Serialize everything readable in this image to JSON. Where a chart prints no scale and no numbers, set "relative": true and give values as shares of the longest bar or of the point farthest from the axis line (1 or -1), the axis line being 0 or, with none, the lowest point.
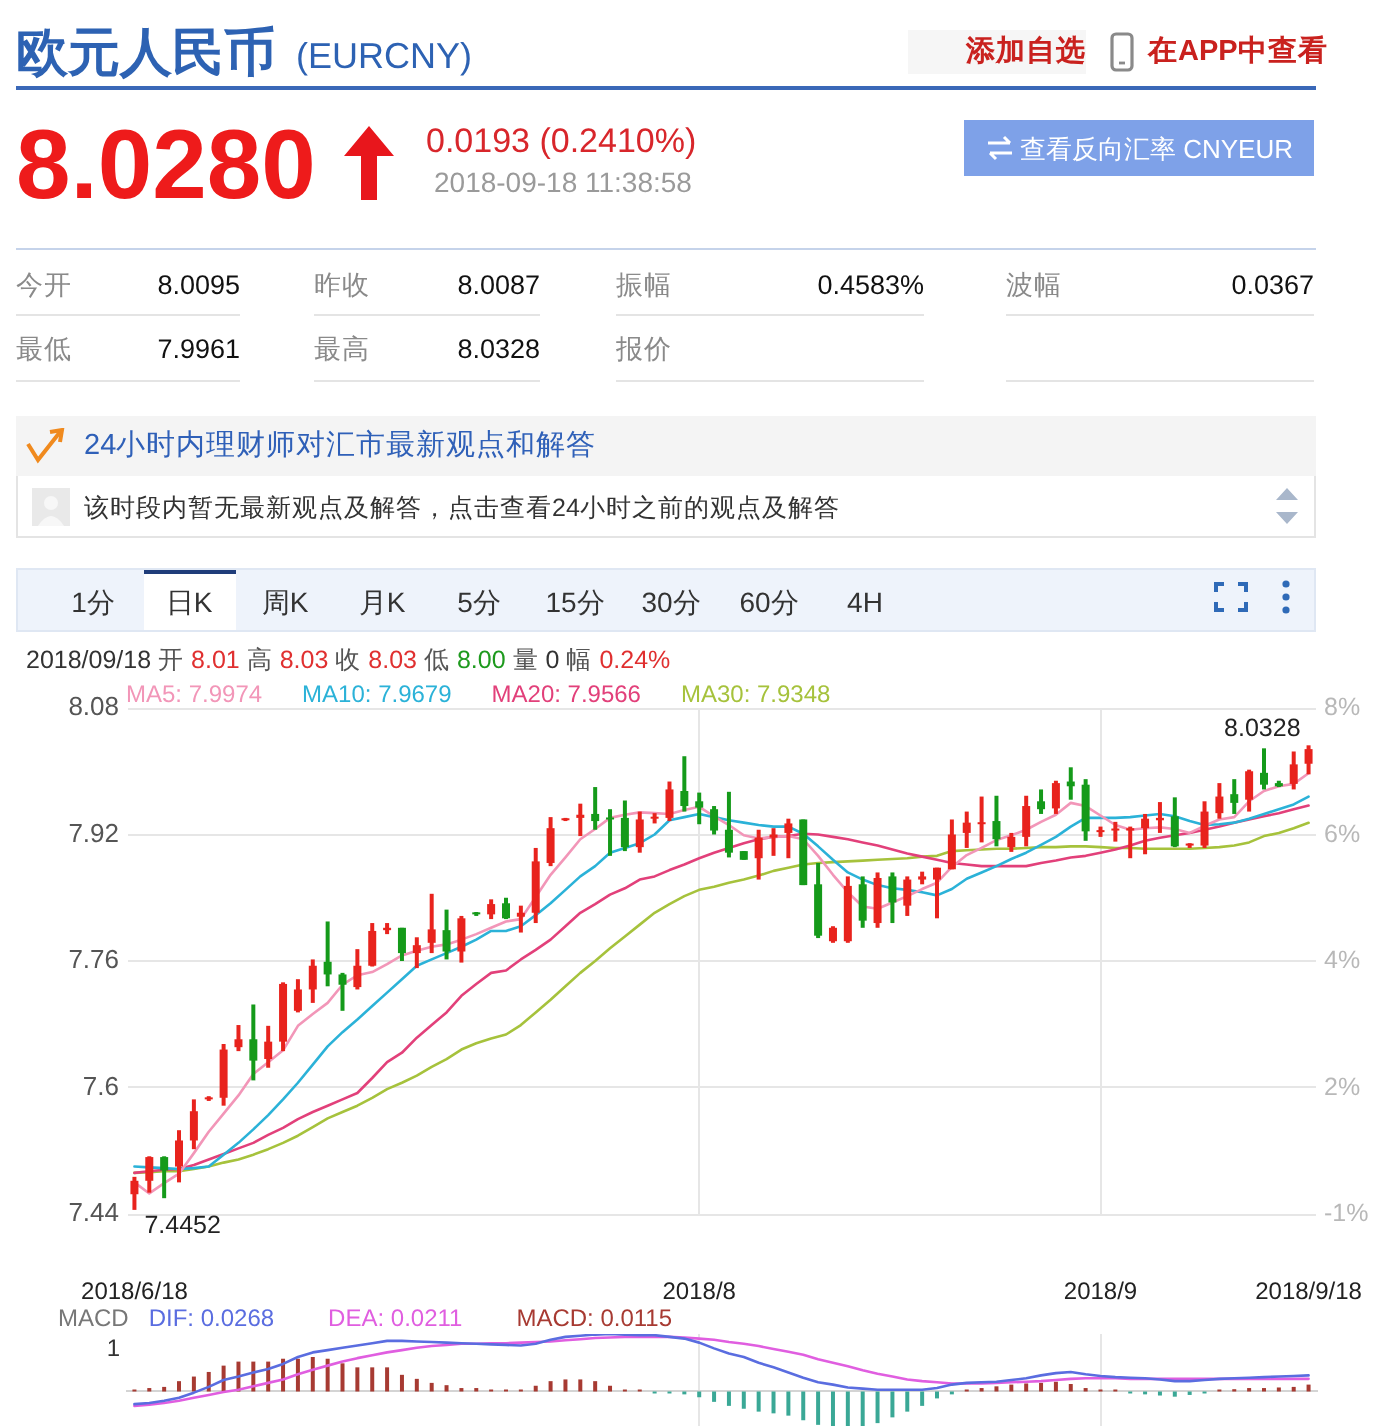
{
  "chart_data": [
    {
      "type": "other",
      "title": "欧元人民币",
      "subtitle": "(EURCNY)",
      "annotations": [
        "添加自选",
        "在APP中查看",
        "8.0280",
        "0.0193 (0.2410%)",
        "2018-09-18 11:38:58",
        "查看反向汇率 CNYEUR",
        "今开",
        "8.0095",
        "昨收",
        "8.0087",
        "振幅",
        "0.4583%",
        "波幅",
        "0.0367",
        "最低",
        "7.9961",
        "最高",
        "8.0328",
        "报价",
        "24小时内理财师对汇市最新观点和解答",
        "该时段内暂无最新观点及解答，点击查看24小时之前的观点及解答",
        "1分",
        "日K",
        "周K",
        "月K",
        "5分",
        "15分",
        "30分",
        "60分",
        "4H"
      ]
    },
    {
      "type": "candlestick",
      "subtitle": "2018/09/18 开 8.01 高 8.03 收 8.03 低 8.00 量 0 幅 0.24%",
      "categories": [
        "2018/6/18",
        null,
        null,
        null,
        null,
        null,
        null,
        null,
        null,
        null,
        null,
        null,
        null,
        null,
        null,
        null,
        null,
        null,
        null,
        null,
        null,
        null,
        null,
        null,
        null,
        null,
        null,
        null,
        null,
        null,
        null,
        null,
        null,
        null,
        null,
        null,
        null,
        null,
        "2018/8",
        null,
        null,
        null,
        null,
        null,
        null,
        null,
        null,
        null,
        null,
        null,
        null,
        null,
        null,
        null,
        null,
        null,
        null,
        null,
        null,
        null,
        null,
        null,
        null,
        null,
        null,
        "2018/9",
        null,
        null,
        null,
        null,
        null,
        null,
        null,
        null,
        null,
        null,
        null,
        null,
        null,
        "2018/9/18"
      ],
      "ohlc": [
        [
          7.465,
          7.487,
          7.4452,
          7.482
        ],
        [
          7.482,
          7.513,
          7.467,
          7.512
        ],
        [
          7.512,
          7.513,
          7.46,
          7.495
        ],
        [
          7.5,
          7.546,
          7.48,
          7.533
        ],
        [
          7.533,
          7.585,
          7.522,
          7.57
        ],
        [
          7.585,
          7.589,
          7.583,
          7.587
        ],
        [
          7.587,
          7.655,
          7.577,
          7.648
        ],
        [
          7.651,
          7.679,
          7.646,
          7.661
        ],
        [
          7.661,
          7.705,
          7.609,
          7.634
        ],
        [
          7.636,
          7.678,
          7.625,
          7.658
        ],
        [
          7.658,
          7.733,
          7.646,
          7.731
        ],
        [
          7.697,
          7.737,
          7.695,
          7.724
        ],
        [
          7.724,
          7.762,
          7.707,
          7.754
        ],
        [
          7.759,
          7.81,
          7.728,
          7.743
        ],
        [
          7.743,
          7.745,
          7.697,
          7.73
        ],
        [
          7.727,
          7.775,
          7.724,
          7.754
        ],
        [
          7.754,
          7.808,
          7.753,
          7.798
        ],
        [
          7.799,
          7.808,
          7.794,
          7.802
        ],
        [
          7.802,
          7.802,
          7.76,
          7.77
        ],
        [
          7.77,
          7.79,
          7.751,
          7.78
        ],
        [
          7.783,
          7.845,
          7.77,
          7.8
        ],
        [
          7.799,
          7.825,
          7.762,
          7.772
        ],
        [
          7.772,
          7.817,
          7.758,
          7.814
        ],
        [
          7.82,
          7.822,
          7.817,
          7.819
        ],
        [
          7.819,
          7.838,
          7.813,
          7.832
        ],
        [
          7.833,
          7.84,
          7.813,
          7.814
        ],
        [
          7.816,
          7.83,
          7.796,
          7.821
        ],
        [
          7.821,
          7.903,
          7.808,
          7.886
        ],
        [
          7.884,
          7.942,
          7.88,
          7.928
        ],
        [
          7.938,
          7.941,
          7.937,
          7.939
        ],
        [
          7.941,
          7.959,
          7.918,
          7.945
        ],
        [
          7.946,
          7.98,
          7.926,
          7.937
        ],
        [
          7.94,
          7.952,
          7.893,
          7.939
        ],
        [
          7.941,
          7.963,
          7.899,
          7.904
        ],
        [
          7.904,
          7.949,
          7.897,
          7.939
        ],
        [
          7.94,
          7.947,
          7.934,
          7.942
        ],
        [
          7.941,
          7.987,
          7.937,
          7.977
        ],
        [
          7.975,
          8.019,
          7.949,
          7.956
        ],
        [
          7.962,
          7.973,
          7.933,
          7.954
        ],
        [
          7.952,
          7.956,
          7.92,
          7.925
        ],
        [
          7.926,
          7.974,
          7.891,
          7.897
        ],
        [
          7.899,
          7.899,
          7.888,
          7.888
        ],
        [
          7.89,
          7.926,
          7.863,
          7.916
        ],
        [
          7.916,
          7.928,
          7.893,
          7.92
        ],
        [
          7.922,
          7.94,
          7.89,
          7.934
        ],
        [
          7.939,
          7.939,
          7.856,
          7.856
        ],
        [
          7.857,
          7.884,
          7.789,
          7.792
        ],
        [
          7.785,
          7.804,
          7.783,
          7.802
        ],
        [
          7.785,
          7.867,
          7.783,
          7.855
        ],
        [
          7.857,
          7.867,
          7.802,
          7.811
        ],
        [
          7.808,
          7.872,
          7.802,
          7.865
        ],
        [
          7.867,
          7.872,
          7.808,
          7.834
        ],
        [
          7.83,
          7.867,
          7.817,
          7.863
        ],
        [
          7.863,
          7.873,
          7.857,
          7.867
        ],
        [
          7.863,
          7.878,
          7.814,
          7.878
        ],
        [
          7.876,
          7.939,
          7.876,
          7.92
        ],
        [
          7.922,
          7.949,
          7.903,
          7.935
        ],
        [
          7.933,
          7.968,
          7.91,
          7.935
        ],
        [
          7.937,
          7.969,
          7.905,
          7.914
        ],
        [
          7.904,
          7.922,
          7.898,
          7.917
        ],
        [
          7.917,
          7.969,
          7.905,
          7.956
        ],
        [
          7.962,
          7.977,
          7.946,
          7.952
        ],
        [
          7.953,
          7.988,
          7.946,
          7.985
        ],
        [
          7.987,
          8.005,
          7.964,
          7.981
        ],
        [
          7.983,
          7.99,
          7.912,
          7.924
        ],
        [
          7.923,
          7.93,
          7.917,
          7.925
        ],
        [
          7.925,
          7.936,
          7.911,
          7.927
        ],
        [
          7.925,
          7.93,
          7.89,
          7.928
        ],
        [
          7.928,
          7.946,
          7.895,
          7.94
        ],
        [
          7.938,
          7.961,
          7.922,
          7.941
        ],
        [
          7.943,
          7.967,
          7.904,
          7.905
        ],
        [
          7.906,
          7.909,
          7.903,
          7.908
        ],
        [
          7.906,
          7.962,
          7.903,
          7.949
        ],
        [
          7.947,
          7.985,
          7.94,
          7.968
        ],
        [
          7.971,
          7.99,
          7.946,
          7.96
        ],
        [
          7.964,
          8.002,
          7.949,
          8.0
        ],
        [
          7.998,
          8.029,
          7.977,
          7.983
        ],
        [
          7.985,
          7.988,
          7.98,
          7.981
        ],
        [
          7.984,
          8.025,
          7.977,
          8.0087
        ],
        [
          8.0095,
          8.0328,
          7.9961,
          8.028
        ]
      ],
      "colors": [
        "#e8231d",
        "#e8231d",
        "#159a1a",
        "#e8231d",
        "#e8231d",
        "#e8231d",
        "#e8231d",
        "#e8231d",
        "#159a1a",
        "#e8231d",
        "#e8231d",
        "#e8231d",
        "#e8231d",
        "#159a1a",
        "#159a1a",
        "#e8231d",
        "#e8231d",
        "#e8231d",
        "#159a1a",
        "#e8231d",
        "#e8231d",
        "#159a1a",
        "#e8231d",
        "#159a1a",
        "#e8231d",
        "#159a1a",
        "#e8231d",
        "#e8231d",
        "#e8231d",
        "#e8231d",
        "#e8231d",
        "#159a1a",
        "#159a1a",
        "#159a1a",
        "#e8231d",
        "#e8231d",
        "#e8231d",
        "#159a1a",
        "#159a1a",
        "#159a1a",
        "#159a1a",
        "#159a1a",
        "#e8231d",
        "#e8231d",
        "#e8231d",
        "#159a1a",
        "#159a1a",
        "#e8231d",
        "#e8231d",
        "#159a1a",
        "#e8231d",
        "#159a1a",
        "#e8231d",
        "#e8231d",
        "#e8231d",
        "#e8231d",
        "#e8231d",
        "#e8231d",
        "#159a1a",
        "#e8231d",
        "#e8231d",
        "#159a1a",
        "#e8231d",
        "#159a1a",
        "#159a1a",
        "#e8231d",
        "#e8231d",
        "#e8231d",
        "#e8231d",
        "#e8231d",
        "#159a1a",
        "#e8231d",
        "#e8231d",
        "#e8231d",
        "#159a1a",
        "#e8231d",
        "#159a1a",
        "#159a1a",
        "#e8231d",
        "#e8231d"
      ],
      "series": [
        {
          "type": "line",
          "name": "MA5: 7.9974",
          "color": "#f296b8",
          "values": [
            7.48,
            7.466,
            7.479,
            7.491,
            7.517,
            7.544,
            7.567,
            7.59,
            7.617,
            7.632,
            7.647,
            7.678,
            7.693,
            7.707,
            7.73,
            7.742,
            7.746,
            7.756,
            7.767,
            7.773,
            7.778,
            7.781,
            7.787,
            7.794,
            7.802,
            7.81,
            7.813,
            7.841,
            7.869,
            7.891,
            7.914,
            7.927,
            7.941,
            7.945,
            7.948,
            7.947,
            7.946,
            7.951,
            7.955,
            7.943,
            7.932,
            7.919,
            7.915,
            7.917,
            7.918,
            7.914,
            7.893,
            7.869,
            7.847,
            7.829,
            7.826,
            7.834,
            7.842,
            7.851,
            7.859,
            7.879,
            7.894,
            7.903,
            7.913,
            7.919,
            7.926,
            7.936,
            7.945,
            7.96,
            7.956,
            7.944,
            7.932,
            7.926,
            7.928,
            7.929,
            7.927,
            7.922,
            7.931,
            7.939,
            7.942,
            7.962,
            7.975,
            7.981,
            7.984,
            7.9974
          ]
        },
        {
          "type": "line",
          "name": "MA10: 7.9679",
          "color": "#2bb2d8",
          "values": [
            7.5,
            7.499,
            7.498,
            7.497,
            7.498,
            7.5,
            7.515,
            7.53,
            7.547,
            7.565,
            7.585,
            7.606,
            7.629,
            7.652,
            7.67,
            7.686,
            7.703,
            7.72,
            7.737,
            7.754,
            7.762,
            7.77,
            7.778,
            7.787,
            7.798,
            7.798,
            7.804,
            7.818,
            7.833,
            7.85,
            7.867,
            7.88,
            7.897,
            7.903,
            7.909,
            7.92,
            7.938,
            7.942,
            7.946,
            7.942,
            7.938,
            7.935,
            7.932,
            7.93,
            7.93,
            7.921,
            7.905,
            7.888,
            7.872,
            7.863,
            7.856,
            7.852,
            7.85,
            7.847,
            7.843,
            7.851,
            7.864,
            7.872,
            7.88,
            7.889,
            7.897,
            7.907,
            7.917,
            7.93,
            7.941,
            7.941,
            7.941,
            7.942,
            7.944,
            7.946,
            7.943,
            7.937,
            7.932,
            7.933,
            7.935,
            7.94,
            7.946,
            7.952,
            7.958,
            7.9679
          ]
        },
        {
          "type": "line",
          "name": "MA20: 7.9566",
          "color": "#e2407a",
          "values": [
            7.492,
            7.494,
            7.496,
            7.497,
            7.502,
            7.509,
            7.516,
            7.523,
            7.53,
            7.54,
            7.549,
            7.56,
            7.569,
            7.577,
            7.585,
            7.593,
            7.612,
            7.632,
            7.644,
            7.663,
            7.679,
            7.695,
            7.716,
            7.731,
            7.745,
            7.748,
            7.762,
            7.774,
            7.787,
            7.804,
            7.821,
            7.832,
            7.844,
            7.852,
            7.863,
            7.867,
            7.875,
            7.882,
            7.89,
            7.897,
            7.903,
            7.909,
            7.914,
            7.917,
            7.918,
            7.921,
            7.92,
            7.917,
            7.914,
            7.91,
            7.906,
            7.901,
            7.896,
            7.892,
            7.888,
            7.884,
            7.882,
            7.88,
            7.88,
            7.88,
            7.88,
            7.884,
            7.887,
            7.891,
            7.893,
            7.897,
            7.901,
            7.906,
            7.912,
            7.916,
            7.919,
            7.922,
            7.926,
            7.93,
            7.935,
            7.939,
            7.943,
            7.947,
            7.952,
            7.9566
          ]
        },
        {
          "type": "line",
          "name": "MA30: 7.9348",
          "color": "#a6c23c",
          "values": [
            7.492,
            7.493,
            7.494,
            7.494,
            7.497,
            7.5,
            7.505,
            7.509,
            7.515,
            7.522,
            7.53,
            7.539,
            7.55,
            7.561,
            7.569,
            7.577,
            7.587,
            7.598,
            7.606,
            7.615,
            7.626,
            7.636,
            7.648,
            7.656,
            7.662,
            7.667,
            7.679,
            7.695,
            7.711,
            7.728,
            7.745,
            7.76,
            7.776,
            7.791,
            7.806,
            7.821,
            7.832,
            7.842,
            7.85,
            7.854,
            7.859,
            7.863,
            7.868,
            7.874,
            7.878,
            7.882,
            7.884,
            7.885,
            7.886,
            7.887,
            7.888,
            7.889,
            7.89,
            7.892,
            7.893,
            7.899,
            7.9,
            7.901,
            7.902,
            7.902,
            7.903,
            7.904,
            7.904,
            7.905,
            7.905,
            7.904,
            7.903,
            7.903,
            7.902,
            7.902,
            7.902,
            7.902,
            7.903,
            7.904,
            7.906,
            7.91,
            7.918,
            7.922,
            7.928,
            7.9348
          ]
        }
      ],
      "ylim": [
        7.44,
        8.08
      ],
      "yticks": [
        7.44,
        7.6,
        7.76,
        7.92,
        8.08
      ],
      "y2lim": [
        -0.55,
        8
      ],
      "y2ticks": [
        {
          "value": -0.55,
          "label": "-1%"
        },
        {
          "value": 1.58,
          "label": "2%"
        },
        {
          "value": 3.72,
          "label": "4%"
        },
        {
          "value": 5.86,
          "label": "6%"
        },
        {
          "value": 8,
          "label": "8%"
        }
      ],
      "grid": true,
      "legend": "top left",
      "annotations": [
        {
          "text": "8.0328",
          "x": "2018/9/18",
          "y": 8.0328
        },
        {
          "text": "7.4452",
          "x": "2018/6/18",
          "y": 7.4452
        }
      ]
    },
    {
      "type": "bar",
      "relative": true,
      "tick_labels": false,
      "grid": "x",
      "legend": "top left",
      "legend_title": "MACD",
      "annotations": [
        "1"
      ],
      "categories": [
        "2018/6/18",
        null,
        null,
        null,
        null,
        null,
        null,
        null,
        null,
        null,
        null,
        null,
        null,
        null,
        null,
        null,
        null,
        null,
        null,
        null,
        null,
        null,
        null,
        null,
        null,
        null,
        null,
        null,
        null,
        null,
        null,
        null,
        null,
        null,
        null,
        null,
        null,
        null,
        "2018/8",
        null,
        null,
        null,
        null,
        null,
        null,
        null,
        null,
        null,
        null,
        null,
        null,
        null,
        null,
        null,
        null,
        null,
        null,
        null,
        null,
        null,
        null,
        null,
        null,
        null,
        null,
        "2018/9",
        null,
        null,
        null,
        null,
        null,
        null,
        null,
        null,
        null,
        null,
        null,
        null,
        null,
        "2018/9/18"
      ],
      "series": [
        {
          "type": "line",
          "name": "DIF: 0.0268",
          "color": "#5a6de0",
          "values": [
            -0.22,
            -0.2,
            -0.16,
            -0.11,
            -0.02,
            0.08,
            0.2,
            0.26,
            0.33,
            0.39,
            0.48,
            0.6,
            0.68,
            0.72,
            0.76,
            0.8,
            0.84,
            0.88,
            0.88,
            0.87,
            0.86,
            0.85,
            0.84,
            0.83,
            0.82,
            0.81,
            0.8,
            0.83,
            0.9,
            0.95,
            0.97,
            0.99,
            1,
            0.99,
            0.98,
            0.98,
            0.95,
            0.92,
            0.85,
            0.75,
            0.66,
            0.6,
            0.5,
            0.42,
            0.33,
            0.24,
            0.16,
            0.12,
            0.07,
            0.05,
            0.03,
            0.03,
            0.03,
            0.03,
            0.06,
            0.12,
            0.15,
            0.16,
            0.17,
            0.2,
            0.23,
            0.28,
            0.32,
            0.34,
            0.3,
            0.27,
            0.25,
            0.24,
            0.23,
            0.21,
            0.18,
            0.18,
            0.2,
            0.22,
            0.23,
            0.24,
            0.25,
            0.26,
            0.27,
            0.28
          ]
        },
        {
          "type": "line",
          "name": "DEA: 0.0211",
          "color": "#e05ee0",
          "values": [
            -0.25,
            -0.23,
            -0.2,
            -0.16,
            -0.11,
            -0.06,
            -0.01,
            0.03,
            0.09,
            0.15,
            0.21,
            0.3,
            0.38,
            0.45,
            0.52,
            0.58,
            0.63,
            0.68,
            0.72,
            0.76,
            0.79,
            0.81,
            0.83,
            0.83,
            0.84,
            0.84,
            0.85,
            0.86,
            0.87,
            0.89,
            0.91,
            0.93,
            0.94,
            0.95,
            0.95,
            0.95,
            0.95,
            0.94,
            0.92,
            0.9,
            0.86,
            0.83,
            0.79,
            0.74,
            0.69,
            0.64,
            0.56,
            0.5,
            0.44,
            0.37,
            0.31,
            0.26,
            0.21,
            0.18,
            0.16,
            0.14,
            0.14,
            0.14,
            0.15,
            0.16,
            0.17,
            0.18,
            0.2,
            0.22,
            0.23,
            0.23,
            0.23,
            0.22,
            0.22,
            0.22,
            0.22,
            0.22,
            0.22,
            0.22,
            0.22,
            0.22,
            0.22,
            0.22,
            0.22,
            0.22
          ]
        },
        {
          "type": "bar",
          "name": "MACD: 0.0115",
          "color": "#a73a32",
          "values": [
            0.03,
            0.06,
            0.08,
            0.18,
            0.26,
            0.34,
            0.45,
            0.52,
            0.52,
            0.52,
            0.57,
            0.57,
            0.6,
            0.57,
            0.49,
            0.42,
            0.42,
            0.42,
            0.29,
            0.22,
            0.15,
            0.11,
            0.06,
            0.06,
            0.03,
            0.02,
            0.01,
            0.1,
            0.18,
            0.21,
            0.21,
            0.18,
            0.1,
            0.03,
            0.01,
            -0.01,
            -0.02,
            -0.05,
            -0.1,
            -0.18,
            -0.25,
            -0.3,
            -0.35,
            -0.38,
            -0.42,
            -0.5,
            -0.58,
            -0.6,
            -0.6,
            -0.6,
            -0.55,
            -0.45,
            -0.35,
            -0.25,
            -0.12,
            -0.05,
            0.03,
            0.06,
            0.09,
            0.12,
            0.14,
            0.15,
            0.17,
            0.13,
            0.06,
            0.02,
            0.01,
            -0.02,
            -0.05,
            -0.07,
            -0.09,
            -0.06,
            -0.03,
            0.02,
            0.04,
            0.06,
            0.06,
            0.07,
            0.08,
            0.12
          ],
          "colors": [
            "#a73a32",
            "#a73a32",
            "#a73a32",
            "#a73a32",
            "#a73a32",
            "#a73a32",
            "#a73a32",
            "#a73a32",
            "#a73a32",
            "#a73a32",
            "#a73a32",
            "#a73a32",
            "#a73a32",
            "#a73a32",
            "#a73a32",
            "#a73a32",
            "#a73a32",
            "#a73a32",
            "#a73a32",
            "#a73a32",
            "#a73a32",
            "#a73a32",
            "#a73a32",
            "#a73a32",
            "#a73a32",
            "#a73a32",
            "#a73a32",
            "#a73a32",
            "#a73a32",
            "#a73a32",
            "#a73a32",
            "#a73a32",
            "#a73a32",
            "#a73a32",
            "#a73a32",
            "#3aa896",
            "#3aa896",
            "#3aa896",
            "#3aa896",
            "#3aa896",
            "#3aa896",
            "#3aa896",
            "#3aa896",
            "#3aa896",
            "#3aa896",
            "#3aa896",
            "#3aa896",
            "#3aa896",
            "#3aa896",
            "#3aa896",
            "#3aa896",
            "#3aa896",
            "#3aa896",
            "#3aa896",
            "#3aa896",
            "#3aa896",
            "#a73a32",
            "#a73a32",
            "#a73a32",
            "#a73a32",
            "#a73a32",
            "#a73a32",
            "#a73a32",
            "#a73a32",
            "#a73a32",
            "#a73a32",
            "#a73a32",
            "#3aa896",
            "#3aa896",
            "#3aa896",
            "#3aa896",
            "#3aa896",
            "#3aa896",
            "#a73a32",
            "#a73a32",
            "#a73a32",
            "#a73a32",
            "#a73a32",
            "#a73a32",
            "#a73a32"
          ]
        }
      ]
    }
  ]
}
